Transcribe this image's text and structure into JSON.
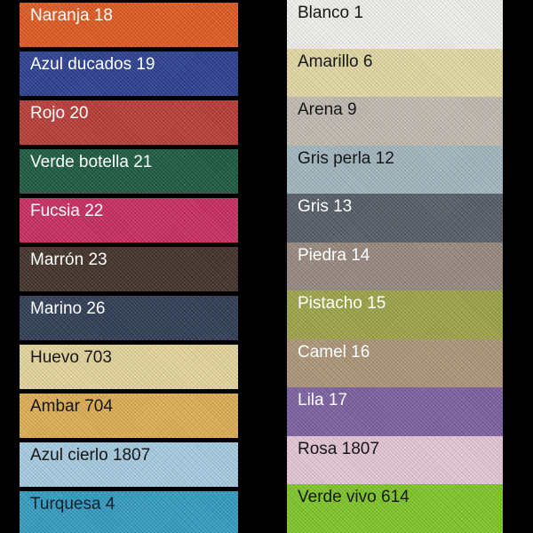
{
  "page": {
    "background_color": "#000000",
    "description": "Fabric colour swatch chart, two columns of labelled linen samples"
  },
  "columns": [
    {
      "name": "left",
      "swatches": [
        {
          "label": "Naranja 18",
          "color": "#E25A20",
          "label_color": "#FFFFFF"
        },
        {
          "label": "Azul ducados 19",
          "color": "#2B3F93",
          "label_color": "#FFFFFF"
        },
        {
          "label": "Rojo 20",
          "color": "#BC3B36",
          "label_color": "#FFFFFF"
        },
        {
          "label": "Verde botella 21",
          "color": "#1A5A40",
          "label_color": "#FFFFFF"
        },
        {
          "label": "Fucsia 22",
          "color": "#CC2B62",
          "label_color": "#FFFFFF"
        },
        {
          "label": "Marrón 23",
          "color": "#413129",
          "label_color": "#FFFFFF"
        },
        {
          "label": "Marino 26",
          "color": "#2F3C55",
          "label_color": "#FFFFFF"
        },
        {
          "label": "Huevo 703",
          "color": "#E8D89F",
          "label_color": "#161616"
        },
        {
          "label": "Ambar 704",
          "color": "#E1B054",
          "label_color": "#161616"
        },
        {
          "label": "Azul cierlo 1807",
          "color": "#A8CFE4",
          "label_color": "#161616"
        },
        {
          "label": "Turquesa 4",
          "color": "#339DC4",
          "label_color": "#10222C"
        }
      ]
    },
    {
      "name": "right",
      "swatches": [
        {
          "label": "Blanco 1",
          "color": "#F4F4F1",
          "label_color": "#161616"
        },
        {
          "label": "Amarillo 6",
          "color": "#E6DCA6",
          "label_color": "#161616"
        },
        {
          "label": "Arena 9",
          "color": "#C3BDB4",
          "label_color": "#161616"
        },
        {
          "label": "Gris perla 12",
          "color": "#A4B8C1",
          "label_color": "#161616"
        },
        {
          "label": "Gris 13",
          "color": "#565D66",
          "label_color": "#FFFFFF"
        },
        {
          "label": "Piedra 14",
          "color": "#988A80",
          "label_color": "#FFFFFF"
        },
        {
          "label": "Pistacho 15",
          "color": "#9EA647",
          "label_color": "#FFFFFF"
        },
        {
          "label": "Camel 16",
          "color": "#AE9778",
          "label_color": "#FFFFFF"
        },
        {
          "label": "Lila 17",
          "color": "#7C61A1",
          "label_color": "#FFFFFF"
        },
        {
          "label": "Rosa 1807",
          "color": "#E8C9D9",
          "label_color": "#161616"
        },
        {
          "label": "Verde vivo 614",
          "color": "#7FC926",
          "label_color": "#161616"
        }
      ]
    }
  ]
}
